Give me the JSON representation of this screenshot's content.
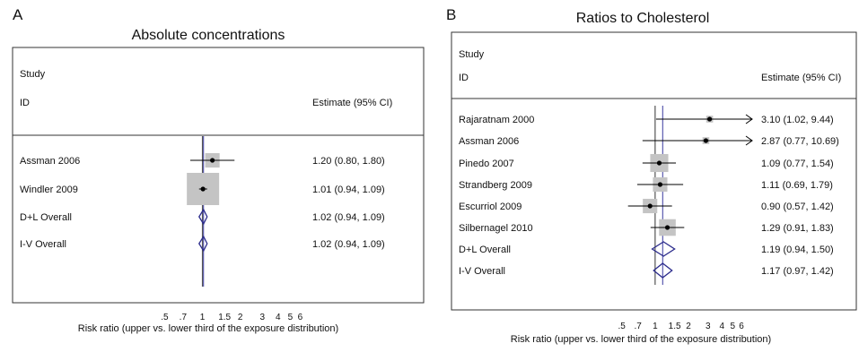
{
  "chart_data": [
    {
      "type": "forest",
      "panel_label": "A",
      "title": "Absolute concentrations",
      "header_study": "Study",
      "header_id": "ID",
      "header_estimate": "Estimate (95% CI)",
      "xlabel": "Risk ratio (upper vs. lower third of the exposure distribution)",
      "xscale": "log",
      "xlim": [
        0.45,
        7.5
      ],
      "ticks": [
        {
          "value": 0.5,
          "label": ".5"
        },
        {
          "value": 0.7,
          "label": ".7"
        },
        {
          "value": 1,
          "label": "1"
        },
        {
          "value": 1.5,
          "label": "1.5"
        },
        {
          "value": 2,
          "label": "2"
        },
        {
          "value": 3,
          "label": "3"
        },
        {
          "value": 4,
          "label": "4"
        },
        {
          "value": 5,
          "label": "5"
        },
        {
          "value": 6,
          "label": "6"
        }
      ],
      "null_value": 1,
      "pooled_line": 1.02,
      "rows": [
        {
          "id": "Assman 2006",
          "estimate": 1.2,
          "lower": 0.8,
          "upper": 1.8,
          "text": "1.20 (0.80, 1.80)",
          "kind": "study",
          "weight": 0.2
        },
        {
          "id": "Windler 2009",
          "estimate": 1.01,
          "lower": 0.94,
          "upper": 1.09,
          "text": "1.01 (0.94, 1.09)",
          "kind": "study",
          "weight": 1.0
        },
        {
          "id": "D+L Overall",
          "estimate": 1.02,
          "lower": 0.94,
          "upper": 1.09,
          "text": "1.02 (0.94, 1.09)",
          "kind": "overall"
        },
        {
          "id": "I-V Overall",
          "estimate": 1.02,
          "lower": 0.94,
          "upper": 1.09,
          "text": "1.02 (0.94, 1.09)",
          "kind": "overall"
        }
      ]
    },
    {
      "type": "forest",
      "panel_label": "B",
      "title": "Ratios to Cholesterol",
      "header_study": "Study",
      "header_id": "ID",
      "header_estimate": "Estimate (95% CI)",
      "xlabel": "Risk ratio (upper vs. lower third of the exposure distribution)",
      "xscale": "log",
      "xlim": [
        0.45,
        7.5
      ],
      "ticks": [
        {
          "value": 0.5,
          "label": ".5"
        },
        {
          "value": 0.7,
          "label": ".7"
        },
        {
          "value": 1,
          "label": "1"
        },
        {
          "value": 1.5,
          "label": "1.5"
        },
        {
          "value": 2,
          "label": "2"
        },
        {
          "value": 3,
          "label": "3"
        },
        {
          "value": 4,
          "label": "4"
        },
        {
          "value": 5,
          "label": "5"
        },
        {
          "value": 6,
          "label": "6"
        }
      ],
      "null_value": 1,
      "pooled_line": 1.17,
      "rows": [
        {
          "id": "Rajaratnam 2000",
          "estimate": 3.1,
          "lower": 1.02,
          "upper": 9.44,
          "text": "3.10 (1.02, 9.44)",
          "kind": "study",
          "weight": 0.1
        },
        {
          "id": "Assman 2006",
          "estimate": 2.87,
          "lower": 0.77,
          "upper": 10.69,
          "text": "2.87 (0.77, 10.69)",
          "kind": "study",
          "weight": 0.1
        },
        {
          "id": "Pinedo 2007",
          "estimate": 1.09,
          "lower": 0.77,
          "upper": 1.54,
          "text": "1.09 (0.77, 1.54)",
          "kind": "study",
          "weight": 0.7
        },
        {
          "id": "Strandberg 2009",
          "estimate": 1.11,
          "lower": 0.69,
          "upper": 1.79,
          "text": "1.11 (0.69, 1.79)",
          "kind": "study",
          "weight": 0.45
        },
        {
          "id": "Escurriol 2009",
          "estimate": 0.9,
          "lower": 0.57,
          "upper": 1.42,
          "text": "0.90 (0.57, 1.42)",
          "kind": "study",
          "weight": 0.45
        },
        {
          "id": "Silbernagel 2010",
          "estimate": 1.29,
          "lower": 0.91,
          "upper": 1.83,
          "text": "1.29 (0.91, 1.83)",
          "kind": "study",
          "weight": 0.6
        },
        {
          "id": "D+L Overall",
          "estimate": 1.19,
          "lower": 0.94,
          "upper": 1.5,
          "text": "1.19 (0.94, 1.50)",
          "kind": "overall"
        },
        {
          "id": "I-V Overall",
          "estimate": 1.17,
          "lower": 0.97,
          "upper": 1.42,
          "text": "1.17 (0.97, 1.42)",
          "kind": "overall"
        }
      ]
    }
  ],
  "colors": {
    "frame": "#333333",
    "text": "#111111",
    "null_line": "#555555",
    "pooled_line": "#3a3aa0",
    "weight_box": "#c4c4c4",
    "diamond": "#2b2b8c",
    "ci_line": "#000000"
  }
}
